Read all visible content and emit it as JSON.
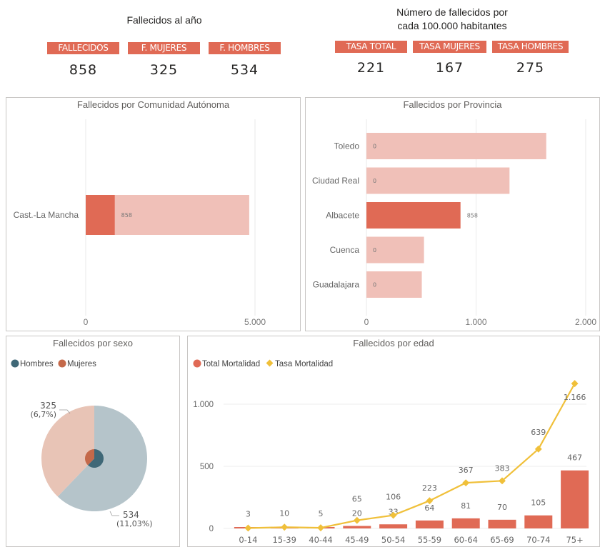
{
  "kpis_left": {
    "title": "Fallecidos al año",
    "items": [
      {
        "label": "FALLECIDOS",
        "value": "858"
      },
      {
        "label": "F. MUJERES",
        "value": "325"
      },
      {
        "label": "F. HOMBRES",
        "value": "534"
      }
    ]
  },
  "kpis_right": {
    "title_line1": "Número de fallecidos por",
    "title_line2": "cada 100.000 habitantes",
    "items": [
      {
        "label": "TASA TOTAL",
        "value": "221"
      },
      {
        "label": "TASA MUJERES",
        "value": "167"
      },
      {
        "label": "TASA HOMBRES",
        "value": "275"
      }
    ]
  },
  "colors": {
    "accent": "#e06a55",
    "accent_light": "#f0c0b8",
    "hombres": "#3f6877",
    "mujeres": "#c4694a",
    "hombres_light": "#b5c4ca",
    "mujeres_light": "#e8c4b6",
    "line": "#f0c03a"
  },
  "chart_data": [
    {
      "id": "comunidad",
      "type": "bar",
      "orientation": "horizontal",
      "title": "Fallecidos por Comunidad Autónoma",
      "categories": [
        "Cast.-La Mancha"
      ],
      "values": [
        858
      ],
      "background_values": [
        4830
      ],
      "data_labels": [
        "858"
      ],
      "xlim": [
        0,
        5000
      ],
      "xticks": [
        0,
        5000
      ],
      "xtick_labels": [
        "0",
        "5.000"
      ],
      "grid": true
    },
    {
      "id": "provincia",
      "type": "bar",
      "orientation": "horizontal",
      "title": "Fallecidos por Provincia",
      "categories": [
        "Toledo",
        "Ciudad Real",
        "Albacete",
        "Cuenca",
        "Guadalajara"
      ],
      "values": [
        0,
        0,
        858,
        0,
        0
      ],
      "background_values": [
        1640,
        1305,
        858,
        525,
        505
      ],
      "highlighted": "Albacete",
      "data_labels": [
        "0",
        "0",
        "858",
        "0",
        "0"
      ],
      "xlim": [
        0,
        2000
      ],
      "xticks": [
        0,
        1000,
        2000
      ],
      "xtick_labels": [
        "0",
        "1.000",
        "2.000"
      ],
      "grid": true
    },
    {
      "id": "sexo",
      "type": "pie",
      "title": "Fallecidos por sexo",
      "legend": [
        "Hombres",
        "Mujeres"
      ],
      "legend_position": "top-left",
      "slices": [
        {
          "name": "Hombres",
          "value": 534,
          "label_value": "534",
          "label_pct": "(11,03%)"
        },
        {
          "name": "Mujeres",
          "value": 325,
          "label_value": "325",
          "label_pct": "(6,7%)"
        }
      ]
    },
    {
      "id": "edad",
      "type": "bar",
      "title": "Fallecidos por edad",
      "legend": [
        "Total Mortalidad",
        "Tasa Mortalidad"
      ],
      "legend_position": "top-left",
      "categories": [
        "0-14",
        "15-39",
        "40-44",
        "45-49",
        "50-54",
        "55-59",
        "60-64",
        "65-69",
        "70-74",
        "75+"
      ],
      "series": [
        {
          "name": "Total Mortalidad",
          "type": "bar",
          "values": [
            3,
            10,
            5,
            20,
            33,
            64,
            81,
            70,
            105,
            467
          ],
          "labels": [
            "",
            "",
            "",
            "20",
            "33",
            "64",
            "81",
            "70",
            "105",
            "467"
          ]
        },
        {
          "name": "Tasa Mortalidad",
          "type": "line",
          "values": [
            3,
            10,
            5,
            65,
            106,
            223,
            367,
            383,
            639,
            1166
          ],
          "labels": [
            "3",
            "10",
            "5",
            "65",
            "106",
            "223",
            "367",
            "383",
            "639",
            "1.166"
          ]
        }
      ],
      "ylim": [
        0,
        1300
      ],
      "yticks": [
        0,
        500,
        1000
      ],
      "ytick_labels": [
        "0",
        "500",
        "1.000"
      ],
      "grid": true
    }
  ]
}
